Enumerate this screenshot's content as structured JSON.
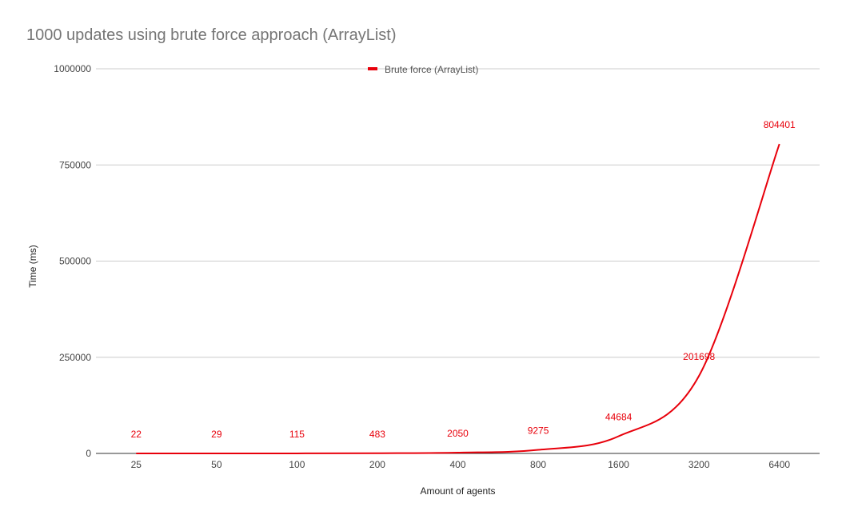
{
  "chart_data": {
    "type": "line",
    "title": "1000 updates using brute force approach (ArrayList)",
    "xlabel": "Amount of agents",
    "ylabel": "Time (ms)",
    "categories": [
      "25",
      "50",
      "100",
      "200",
      "400",
      "800",
      "1600",
      "3200",
      "6400"
    ],
    "series": [
      {
        "name": "Brute force (ArrayList)",
        "color": "#e8000b",
        "values": [
          22,
          29,
          115,
          483,
          2050,
          9275,
          44684,
          201698,
          804401
        ]
      }
    ],
    "data_labels": [
      "22",
      "29",
      "115",
      "483",
      "2050",
      "9275",
      "44684",
      "201698",
      "804401"
    ],
    "ylim": [
      0,
      1000000
    ],
    "yticks": [
      0,
      250000,
      500000,
      750000,
      1000000
    ],
    "ytick_labels": [
      "0",
      "250000",
      "500000",
      "750000",
      "1000000"
    ],
    "grid": true,
    "legend_position": "top",
    "smooth": true
  }
}
